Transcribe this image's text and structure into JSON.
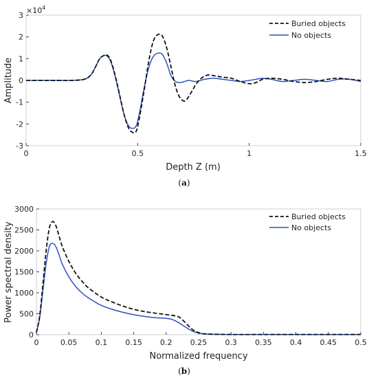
{
  "chart_data": [
    {
      "type": "line",
      "panel_label": "a",
      "title": "",
      "xlabel": "Depth Z (m)",
      "ylabel": "Amplitude",
      "exponent_label": "×10",
      "exponent_power": "4",
      "xlim": [
        0,
        1.5
      ],
      "ylim": [
        -3,
        3
      ],
      "xticks": [
        0,
        0.5,
        1,
        1.5
      ],
      "xtick_labels": [
        "0",
        "0.5",
        "1",
        "1.5"
      ],
      "yticks": [
        -3,
        -2,
        -1,
        0,
        1,
        2,
        3
      ],
      "ytick_labels": [
        "-3",
        "-2",
        "-1",
        "0",
        "1",
        "2",
        "3"
      ],
      "grid": false,
      "legend_position": "top-right",
      "series": [
        {
          "name": "Buried objects",
          "color": "#111111",
          "style": "dashed",
          "x": [
            0,
            0.1,
            0.2,
            0.26,
            0.29,
            0.31,
            0.33,
            0.35,
            0.365,
            0.38,
            0.4,
            0.42,
            0.44,
            0.46,
            0.48,
            0.495,
            0.51,
            0.53,
            0.55,
            0.57,
            0.59,
            0.61,
            0.63,
            0.65,
            0.67,
            0.69,
            0.71,
            0.725,
            0.74,
            0.76,
            0.78,
            0.8,
            0.82,
            0.85,
            0.88,
            0.92,
            0.96,
            1.0,
            1.03,
            1.06,
            1.1,
            1.15,
            1.2,
            1.25,
            1.3,
            1.35,
            1.4,
            1.45,
            1.5
          ],
          "y": [
            0,
            0,
            0,
            0.05,
            0.25,
            0.6,
            1.0,
            1.15,
            1.15,
            0.9,
            0.2,
            -0.7,
            -1.6,
            -2.2,
            -2.4,
            -2.3,
            -1.6,
            -0.4,
            0.9,
            1.8,
            2.1,
            2.05,
            1.5,
            0.6,
            -0.3,
            -0.8,
            -0.95,
            -0.8,
            -0.55,
            -0.2,
            0.05,
            0.2,
            0.25,
            0.2,
            0.15,
            0.1,
            -0.05,
            -0.15,
            -0.1,
            0.05,
            0.1,
            0.05,
            -0.05,
            -0.1,
            -0.05,
            0.05,
            0.1,
            0.05,
            0.0
          ]
        },
        {
          "name": "No objects",
          "color": "#2a52be",
          "style": "solid",
          "x": [
            0,
            0.1,
            0.2,
            0.26,
            0.29,
            0.31,
            0.33,
            0.35,
            0.365,
            0.38,
            0.4,
            0.42,
            0.44,
            0.46,
            0.48,
            0.495,
            0.51,
            0.53,
            0.55,
            0.57,
            0.59,
            0.61,
            0.63,
            0.65,
            0.67,
            0.69,
            0.71,
            0.73,
            0.76,
            0.8,
            0.84,
            0.88,
            0.92,
            0.96,
            1.0,
            1.03,
            1.06,
            1.1,
            1.15,
            1.2,
            1.25,
            1.3,
            1.35,
            1.4,
            1.45,
            1.5
          ],
          "y": [
            0,
            0,
            0,
            0.05,
            0.25,
            0.6,
            1.0,
            1.15,
            1.1,
            0.85,
            0.15,
            -0.75,
            -1.6,
            -2.1,
            -2.2,
            -2.05,
            -1.4,
            -0.3,
            0.6,
            1.1,
            1.25,
            1.2,
            0.8,
            0.2,
            -0.05,
            -0.1,
            -0.05,
            0.0,
            -0.05,
            0.05,
            0.1,
            0.05,
            0.0,
            -0.05,
            0.0,
            0.05,
            0.1,
            0.05,
            -0.05,
            0.0,
            0.05,
            0.0,
            -0.05,
            0.05,
            0.05,
            -0.05
          ]
        }
      ]
    },
    {
      "type": "line",
      "panel_label": "b",
      "title": "",
      "xlabel": "Normalized frequency",
      "ylabel": "Power spectral density",
      "xlim": [
        0,
        0.5
      ],
      "ylim": [
        0,
        3000
      ],
      "xticks": [
        0,
        0.05,
        0.1,
        0.15,
        0.2,
        0.25,
        0.3,
        0.35,
        0.4,
        0.45,
        0.5
      ],
      "xtick_labels": [
        "0",
        "0.05",
        "0.1",
        "0.15",
        "0.2",
        "0.25",
        "0.3",
        "0.35",
        "0.4",
        "0.45",
        "0.5"
      ],
      "yticks": [
        0,
        500,
        1000,
        1500,
        2000,
        2500,
        3000
      ],
      "ytick_labels": [
        "0",
        "500",
        "1000",
        "1500",
        "2000",
        "2500",
        "3000"
      ],
      "grid": false,
      "legend_position": "top-right",
      "series": [
        {
          "name": "Buried objects",
          "color": "#111111",
          "style": "dashed",
          "x": [
            0,
            0.005,
            0.01,
            0.015,
            0.02,
            0.025,
            0.03,
            0.035,
            0.04,
            0.05,
            0.06,
            0.07,
            0.08,
            0.1,
            0.12,
            0.14,
            0.16,
            0.18,
            0.2,
            0.21,
            0.22,
            0.23,
            0.24,
            0.25,
            0.26,
            0.28,
            0.3,
            0.35,
            0.4,
            0.45,
            0.5
          ],
          "y": [
            50,
            450,
            1200,
            2000,
            2550,
            2700,
            2600,
            2350,
            2100,
            1750,
            1480,
            1280,
            1120,
            900,
            760,
            650,
            570,
            520,
            480,
            460,
            420,
            280,
            130,
            50,
            20,
            10,
            5,
            5,
            5,
            5,
            5
          ]
        },
        {
          "name": "No objects",
          "color": "#2a52be",
          "style": "solid",
          "x": [
            0,
            0.005,
            0.01,
            0.015,
            0.02,
            0.025,
            0.03,
            0.035,
            0.04,
            0.05,
            0.06,
            0.07,
            0.08,
            0.1,
            0.12,
            0.14,
            0.16,
            0.18,
            0.2,
            0.21,
            0.22,
            0.23,
            0.24,
            0.25,
            0.26,
            0.28,
            0.3,
            0.35,
            0.4,
            0.45,
            0.5
          ],
          "y": [
            50,
            400,
            1050,
            1700,
            2100,
            2180,
            2100,
            1900,
            1680,
            1380,
            1160,
            1000,
            880,
            700,
            590,
            510,
            450,
            410,
            390,
            360,
            280,
            180,
            90,
            40,
            15,
            8,
            5,
            5,
            5,
            5,
            5
          ]
        }
      ]
    }
  ]
}
